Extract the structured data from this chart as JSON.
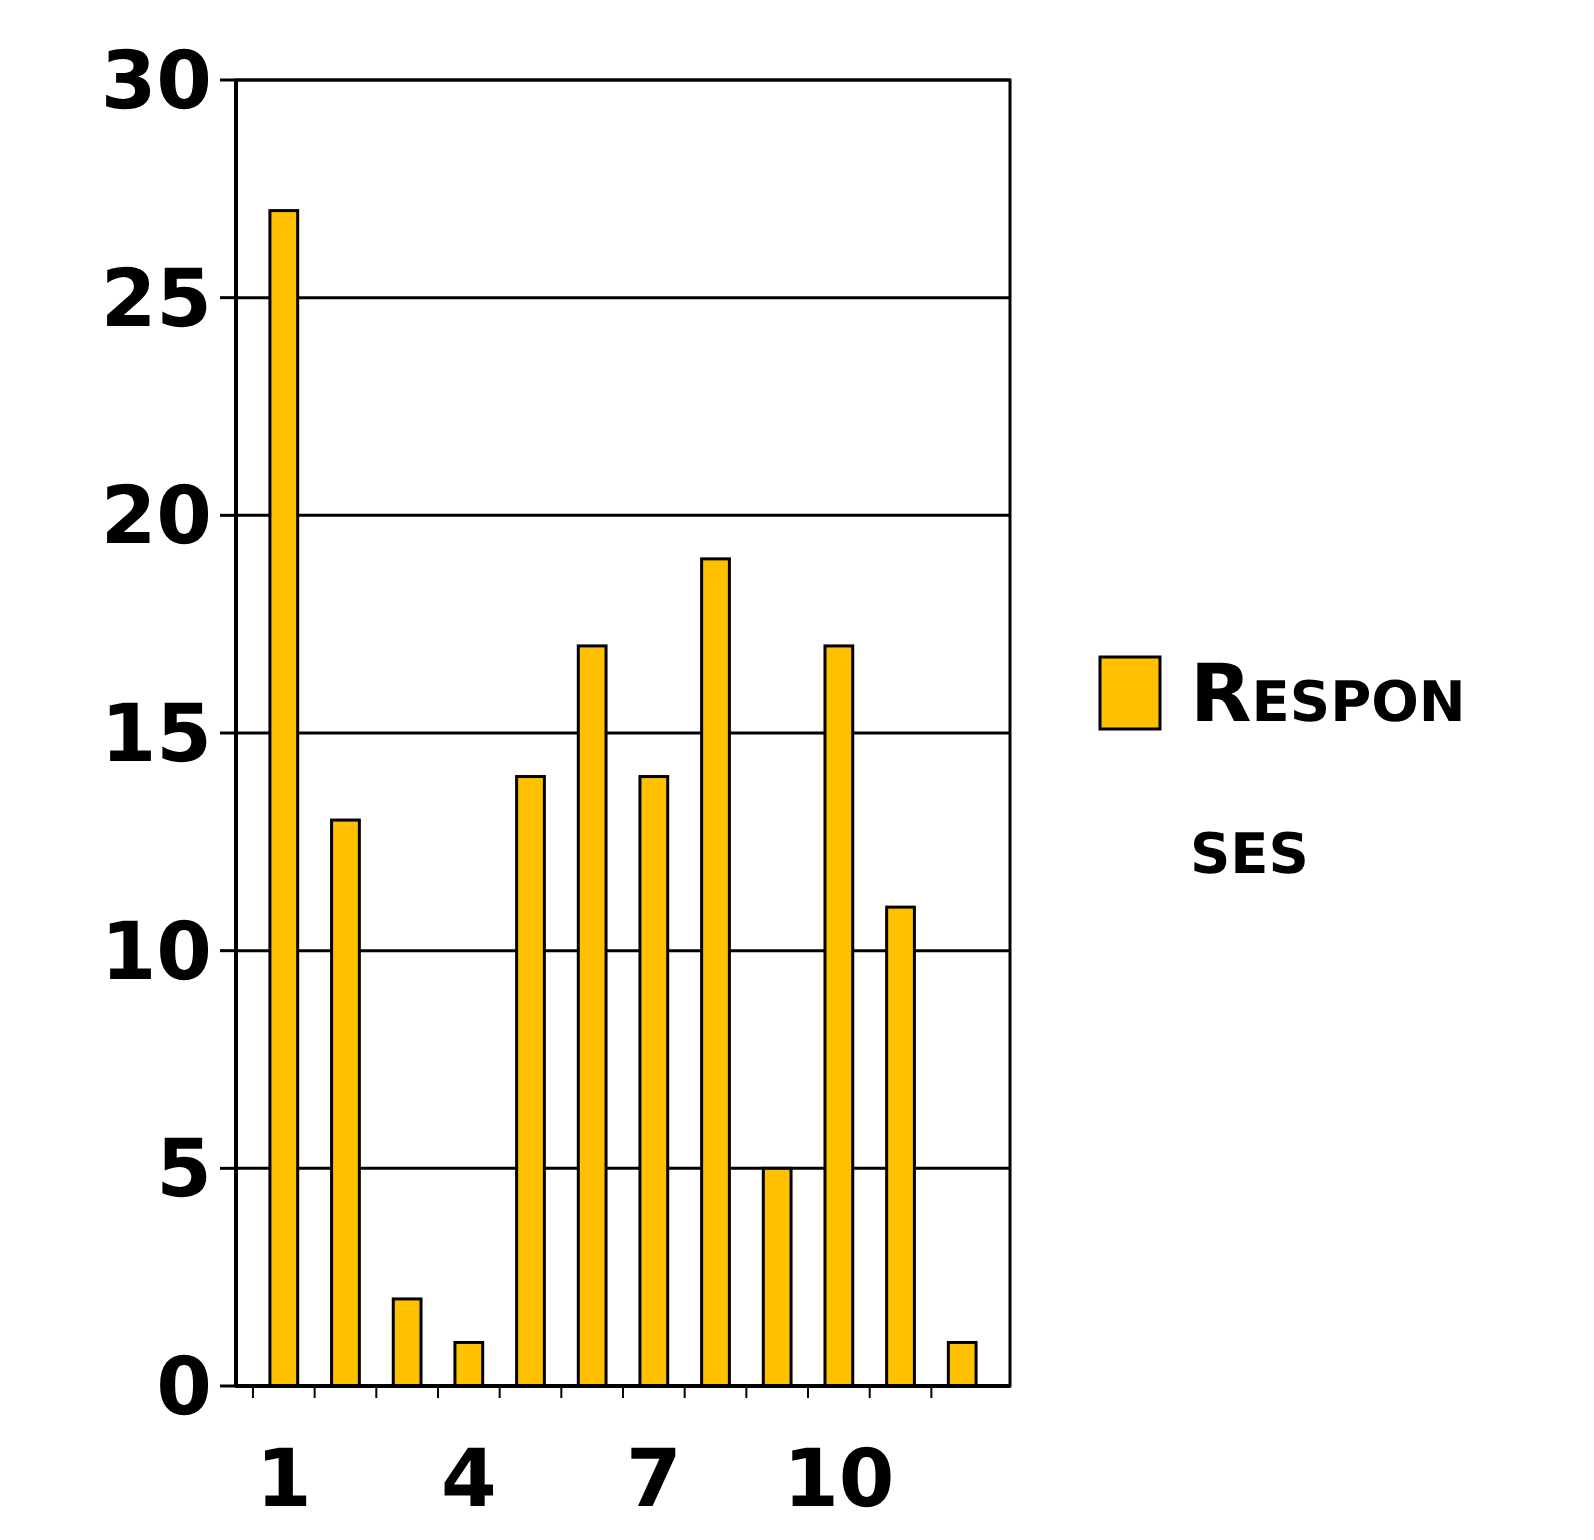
{
  "chart_data": {
    "type": "bar",
    "categories": [
      "1",
      null,
      null,
      "4",
      null,
      null,
      "7",
      null,
      null,
      "10",
      null,
      null
    ],
    "series": [
      {
        "name": "Responses",
        "color": "#ffc000",
        "values": [
          27,
          13,
          2,
          1,
          14,
          17,
          14,
          19,
          5,
          17,
          11,
          1
        ]
      }
    ],
    "ylim": [
      0,
      30
    ],
    "yticks": [
      0,
      5,
      10,
      15,
      20,
      25,
      30
    ],
    "grid": "y",
    "legend": "right"
  }
}
